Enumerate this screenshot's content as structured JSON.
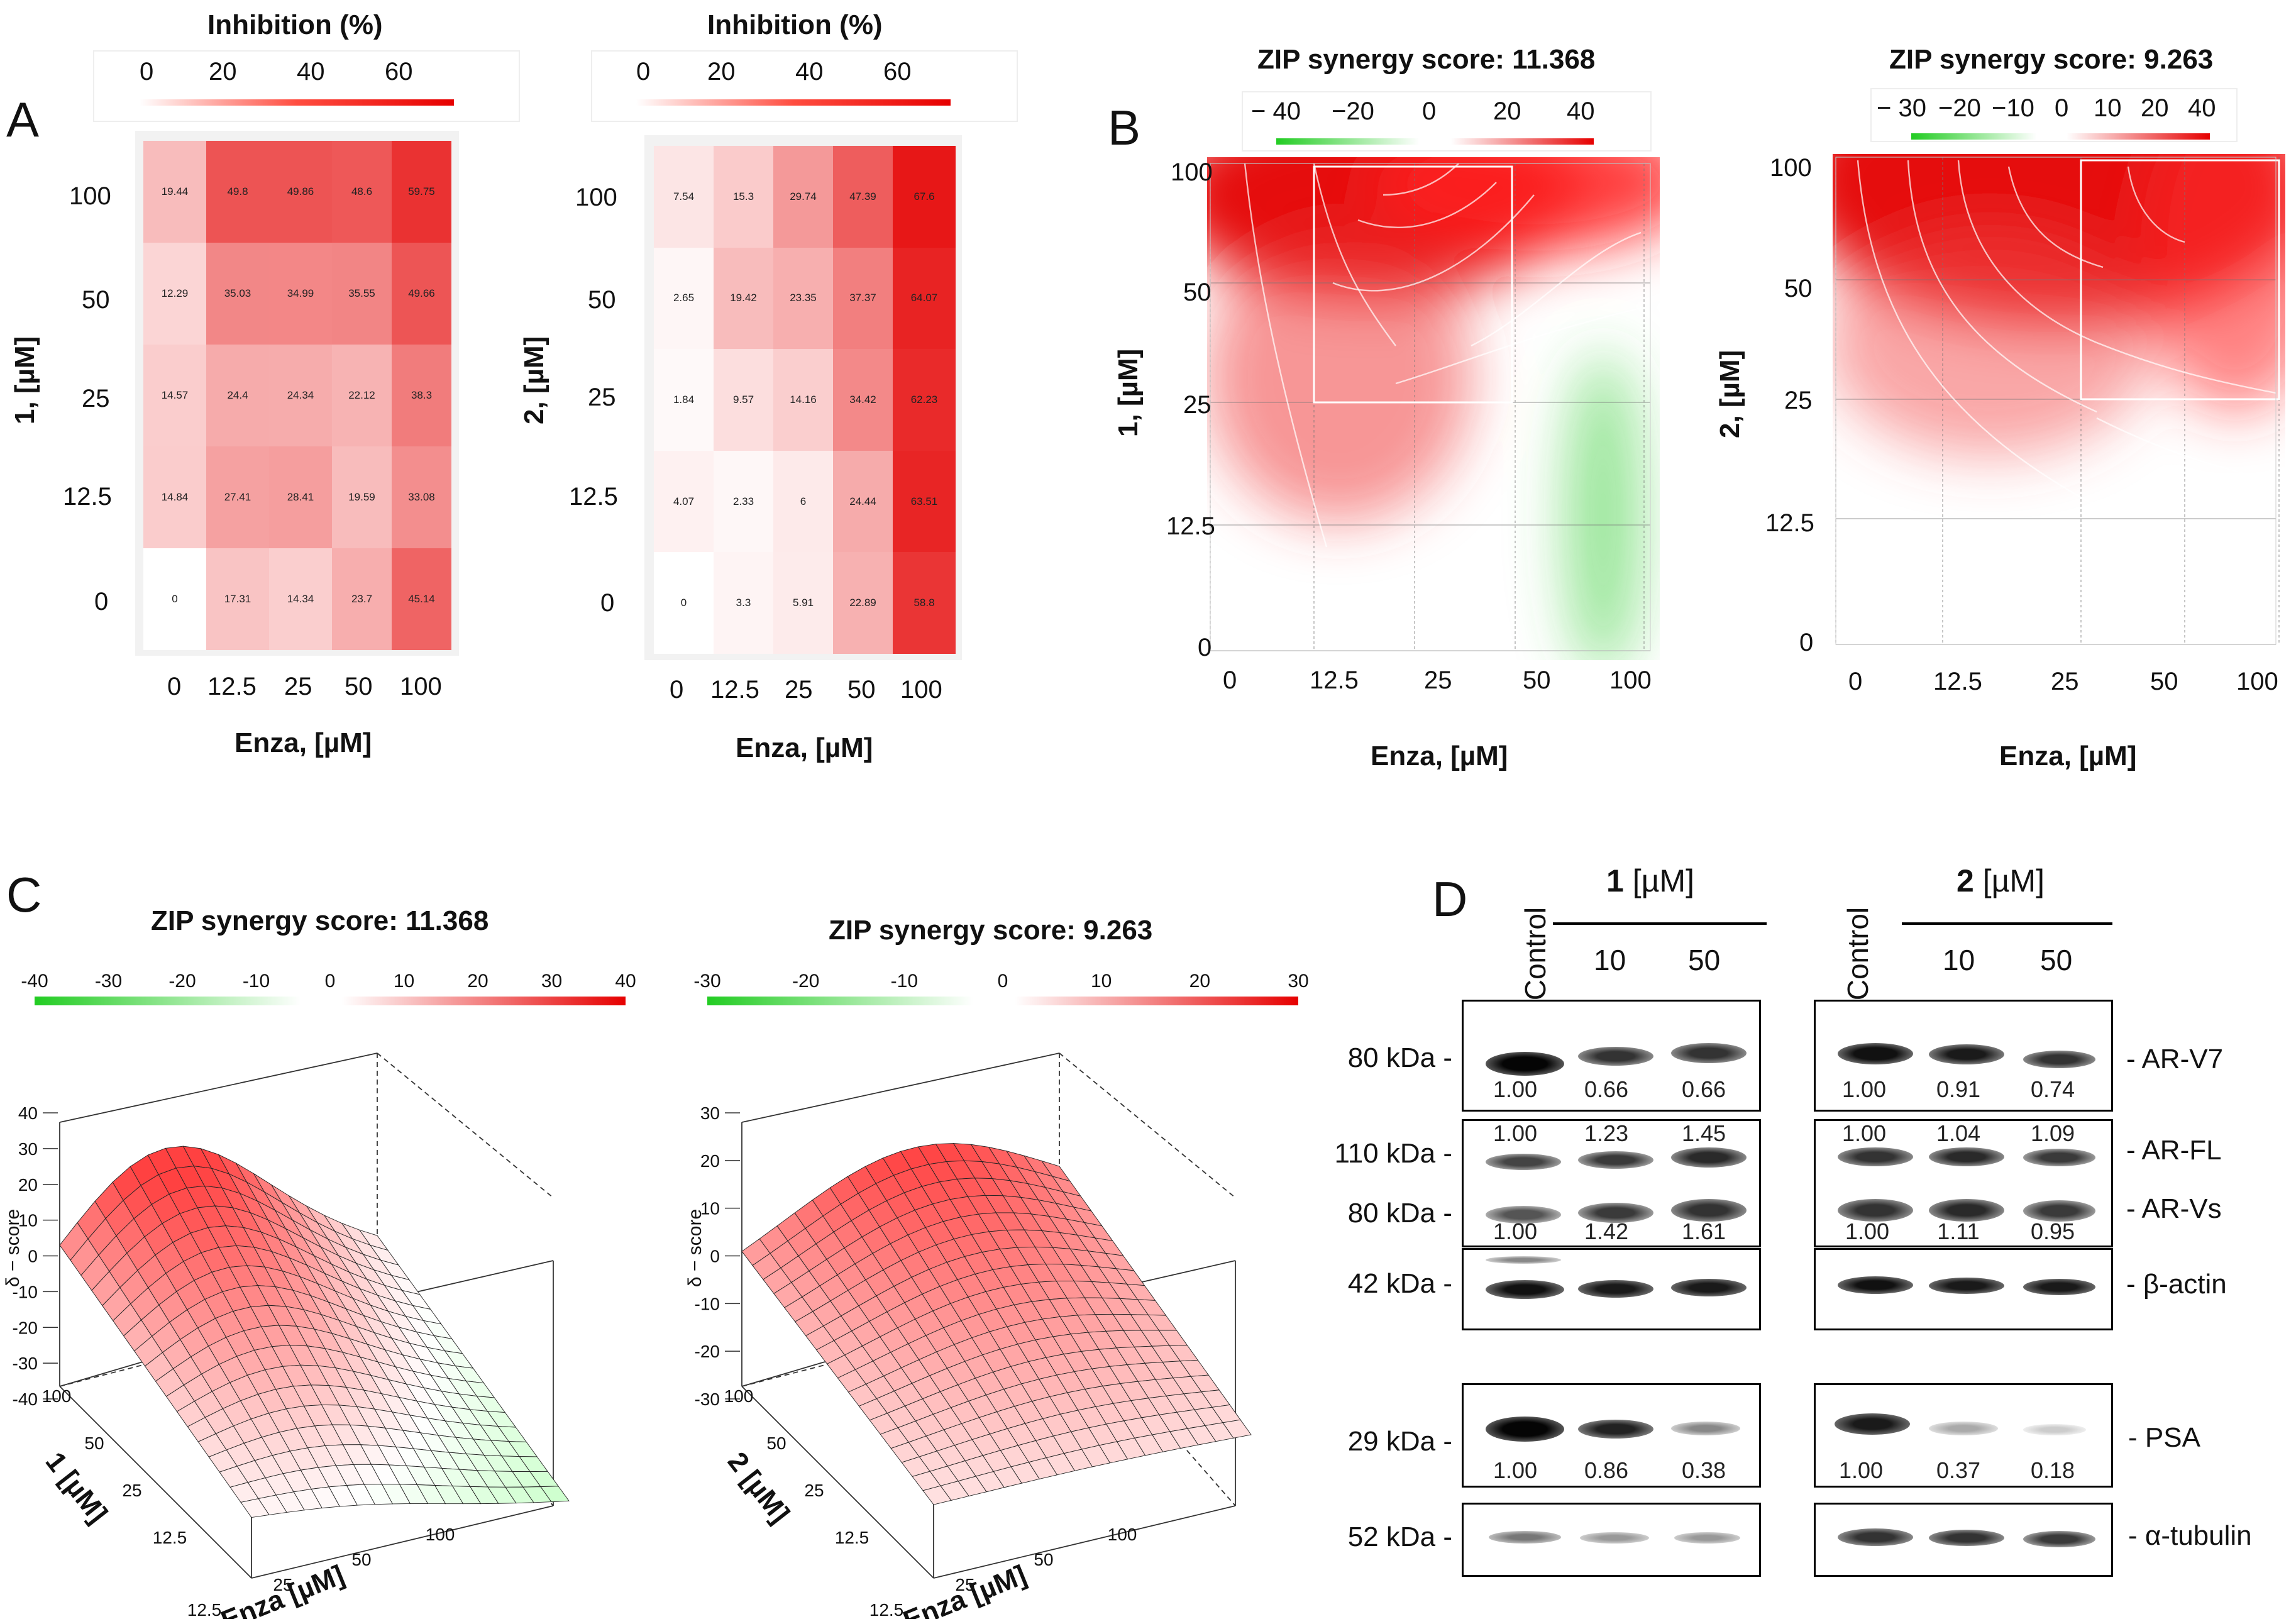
{
  "panels": {
    "a": "A",
    "b": "B",
    "c": "C",
    "d": "D"
  },
  "panel_a": {
    "legend_title": "Inhibition (%)",
    "legend_ticks": [
      "0",
      "20",
      "40",
      "60"
    ],
    "x_label": "Enza, [µM]",
    "x_ticks": [
      "0",
      "12.5",
      "25",
      "50",
      "100"
    ],
    "y_ticks": [
      "100",
      "50",
      "25",
      "12.5",
      "0"
    ],
    "left": {
      "y_label": "1, [µM]",
      "values": [
        [
          "19.44",
          "49.8",
          "49.86",
          "48.6",
          "59.75"
        ],
        [
          "12.29",
          "35.03",
          "34.99",
          "35.55",
          "49.66"
        ],
        [
          "14.57",
          "24.4",
          "24.34",
          "22.12",
          "38.3"
        ],
        [
          "14.84",
          "27.41",
          "28.41",
          "19.59",
          "33.08"
        ],
        [
          "0",
          "17.31",
          "14.34",
          "23.7",
          "45.14"
        ]
      ]
    },
    "right": {
      "y_label": "2, [µM]",
      "values": [
        [
          "7.54",
          "15.3",
          "29.74",
          "47.39",
          "67.6"
        ],
        [
          "2.65",
          "19.42",
          "23.35",
          "37.37",
          "64.07"
        ],
        [
          "1.84",
          "9.57",
          "14.16",
          "34.42",
          "62.23"
        ],
        [
          "4.07",
          "2.33",
          "6",
          "24.44",
          "63.51"
        ],
        [
          "0",
          "3.3",
          "5.91",
          "22.89",
          "58.8"
        ]
      ]
    }
  },
  "panel_b": {
    "x_label": "Enza, [µM]",
    "x_ticks": [
      "0",
      "12.5",
      "25",
      "50",
      "100"
    ],
    "y_ticks": [
      "100",
      "50",
      "25",
      "12.5",
      "0"
    ],
    "left": {
      "title": "ZIP synergy score: 11.368",
      "legend_ticks": [
        "− 40",
        "−20",
        "0",
        "20",
        "40"
      ],
      "y_label": "1, [µM]"
    },
    "right": {
      "title": "ZIP synergy score: 9.263",
      "legend_ticks": [
        "− 30",
        "−20",
        "−10",
        "0",
        "10",
        "20",
        "40"
      ],
      "y_label": "2, [µM]"
    }
  },
  "panel_c": {
    "z_axis_label": "δ − score",
    "x_label": "Enza [µM]",
    "x_ticks": [
      "12.5",
      "25",
      "50",
      "100"
    ],
    "y_ticks": [
      "100",
      "50",
      "25",
      "12.5"
    ],
    "left": {
      "title": "ZIP synergy score: 11.368",
      "legend_ticks": [
        "-40",
        "-30",
        "-20",
        "-10",
        "0",
        "10",
        "20",
        "30",
        "40"
      ],
      "z_ticks": [
        "40",
        "30",
        "20",
        "10",
        "0",
        "-10",
        "-20",
        "-30",
        "-40"
      ],
      "y_label": "1 [µM]"
    },
    "right": {
      "title": "ZIP synergy score: 9.263",
      "legend_ticks": [
        "-30",
        "-20",
        "-10",
        "0",
        "10",
        "20",
        "30"
      ],
      "z_ticks": [
        "30",
        "20",
        "10",
        "0",
        "-10",
        "-20",
        "-30"
      ],
      "y_label": "2 [µM]"
    }
  },
  "panel_d": {
    "control_label": "Control",
    "group1_label": "1",
    "group2_label": "2",
    "unit_label": "[µM]",
    "doses": [
      "10",
      "50"
    ],
    "kda": {
      "arv7": "80 kDa -",
      "arfl": "110 kDa -",
      "arvs": "80 kDa -",
      "actin": "42 kDa -",
      "psa": "29 kDa -",
      "tubulin": "52 kDa -"
    },
    "bands": {
      "arv7": "- AR-V7",
      "arfl": "- AR-FL",
      "arvs": "- AR-Vs",
      "actin": "- β-actin",
      "psa": "- PSA",
      "tubulin": "- α-tubulin"
    },
    "quant": {
      "arv7_1": [
        "1.00",
        "0.66",
        "0.66"
      ],
      "arv7_2": [
        "1.00",
        "0.91",
        "0.74"
      ],
      "arfl_1": [
        "1.00",
        "1.23",
        "1.45"
      ],
      "arfl_2": [
        "1.00",
        "1.04",
        "1.09"
      ],
      "arvs_1": [
        "1.00",
        "1.42",
        "1.61"
      ],
      "arvs_2": [
        "1.00",
        "1.11",
        "0.95"
      ],
      "psa_1": [
        "1.00",
        "0.86",
        "0.38"
      ],
      "psa_2": [
        "1.00",
        "0.37",
        "0.18"
      ]
    }
  },
  "chart_data": [
    {
      "type": "heatmap",
      "title": "Inhibition (%)",
      "xlabel": "Enza, [µM]",
      "ylabel": "1, [µM]",
      "x": [
        "0",
        "12.5",
        "25",
        "50",
        "100"
      ],
      "y": [
        "100",
        "50",
        "25",
        "12.5",
        "0"
      ],
      "values": [
        [
          19.44,
          49.8,
          49.86,
          48.6,
          59.75
        ],
        [
          12.29,
          35.03,
          34.99,
          35.55,
          49.66
        ],
        [
          14.57,
          24.4,
          24.34,
          22.12,
          38.3
        ],
        [
          14.84,
          27.41,
          28.41,
          19.59,
          33.08
        ],
        [
          0,
          17.31,
          14.34,
          23.7,
          45.14
        ]
      ]
    },
    {
      "type": "heatmap",
      "title": "Inhibition (%)",
      "xlabel": "Enza, [µM]",
      "ylabel": "2, [µM]",
      "x": [
        "0",
        "12.5",
        "25",
        "50",
        "100"
      ],
      "y": [
        "100",
        "50",
        "25",
        "12.5",
        "0"
      ],
      "values": [
        [
          7.54,
          15.3,
          29.74,
          47.39,
          67.6
        ],
        [
          2.65,
          19.42,
          23.35,
          37.37,
          64.07
        ],
        [
          1.84,
          9.57,
          14.16,
          34.42,
          62.23
        ],
        [
          4.07,
          2.33,
          6,
          24.44,
          63.51
        ],
        [
          0,
          3.3,
          5.91,
          22.89,
          58.8
        ]
      ]
    },
    {
      "type": "heatmap",
      "title": "ZIP synergy score: 11.368",
      "xlabel": "Enza, [µM]",
      "ylabel": "1, [µM]",
      "color_range": [
        -40,
        40
      ]
    },
    {
      "type": "heatmap",
      "title": "ZIP synergy score: 9.263",
      "xlabel": "Enza, [µM]",
      "ylabel": "2, [µM]",
      "color_range": [
        -30,
        40
      ]
    },
    {
      "type": "area",
      "title": "ZIP synergy score: 11.368",
      "xlabel": "Enza [µM]",
      "ylabel": "1 [µM]",
      "zlabel": "δ − score",
      "zlim": [
        -40,
        40
      ]
    },
    {
      "type": "area",
      "title": "ZIP synergy score: 9.263",
      "xlabel": "Enza [µM]",
      "ylabel": "2 [µM]",
      "zlabel": "δ − score",
      "zlim": [
        -30,
        30
      ]
    }
  ]
}
